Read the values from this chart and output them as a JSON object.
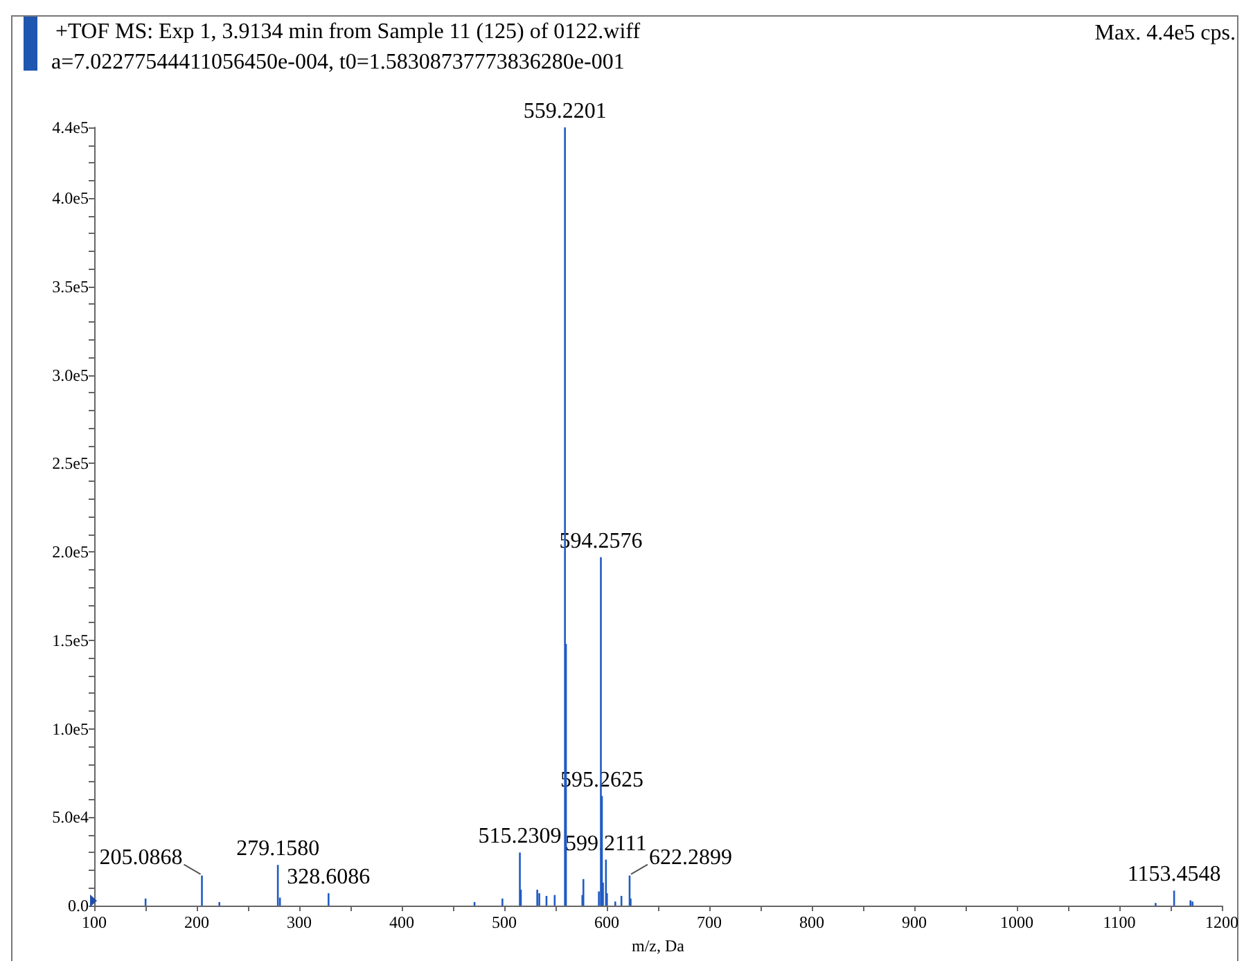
{
  "chart_data": {
    "type": "bar",
    "title": "+TOF MS: Exp 1, 3.9134 min from Sample 11 (125) of 0122.wiff",
    "subtitle": "a=7.02277544411056450e-004, t0=1.58308737773836280e-001",
    "xlabel": "m/z, Da",
    "x": [
      150.1,
      205.0868,
      222.1,
      279.158,
      281.2,
      328.6086,
      471.0,
      498.2,
      515.2309,
      516.2,
      532.2,
      534.2,
      541.2,
      549.2,
      559.2201,
      560.2,
      576.2,
      577.2,
      592.3,
      594.2576,
      595.2625,
      596.3,
      599.2111,
      600.2,
      608.3,
      614.3,
      622.2899,
      623.3,
      1135.4,
      1153.4548,
      1169.4,
      1171.4
    ],
    "values": [
      4000,
      17000,
      2000,
      23000,
      4500,
      7000,
      2000,
      4000,
      30000,
      9000,
      9000,
      7000,
      5500,
      6000,
      440000,
      148000,
      6000,
      15000,
      8000,
      197000,
      62000,
      13000,
      26000,
      7000,
      2300,
      5500,
      17000,
      4000,
      1500,
      8500,
      3000,
      2300
    ],
    "color": "#1f5bc4",
    "xlim": [
      100,
      1200
    ],
    "xticks": [
      100,
      {
        "value": 150,
        "label": null
      },
      200,
      {
        "value": 250,
        "label": null
      },
      300,
      {
        "value": 350,
        "label": null
      },
      400,
      {
        "value": 450,
        "label": null
      },
      500,
      {
        "value": 550,
        "label": null
      },
      600,
      {
        "value": 650,
        "label": null
      },
      700,
      {
        "value": 750,
        "label": null
      },
      800,
      {
        "value": 850,
        "label": null
      },
      900,
      {
        "value": 950,
        "label": null
      },
      1000,
      {
        "value": 1050,
        "label": null
      },
      1100,
      {
        "value": 1150,
        "label": null
      },
      1200
    ],
    "ylim": [
      0,
      440000
    ],
    "yticks": [
      {
        "value": 0,
        "label": "0.0"
      },
      {
        "value": 10000,
        "label": null
      },
      {
        "value": 20000,
        "label": null
      },
      {
        "value": 30000,
        "label": null
      },
      {
        "value": 40000,
        "label": null
      },
      {
        "value": 50000,
        "label": "5.0e4"
      },
      {
        "value": 60000,
        "label": null
      },
      {
        "value": 70000,
        "label": null
      },
      {
        "value": 80000,
        "label": null
      },
      {
        "value": 90000,
        "label": null
      },
      {
        "value": 100000,
        "label": "1.0e5"
      },
      {
        "value": 110000,
        "label": null
      },
      {
        "value": 120000,
        "label": null
      },
      {
        "value": 130000,
        "label": null
      },
      {
        "value": 140000,
        "label": null
      },
      {
        "value": 150000,
        "label": "1.5e5"
      },
      {
        "value": 160000,
        "label": null
      },
      {
        "value": 170000,
        "label": null
      },
      {
        "value": 180000,
        "label": null
      },
      {
        "value": 190000,
        "label": null
      },
      {
        "value": 200000,
        "label": "2.0e5"
      },
      {
        "value": 210000,
        "label": null
      },
      {
        "value": 220000,
        "label": null
      },
      {
        "value": 230000,
        "label": null
      },
      {
        "value": 240000,
        "label": null
      },
      {
        "value": 250000,
        "label": "2.5e5"
      },
      {
        "value": 260000,
        "label": null
      },
      {
        "value": 270000,
        "label": null
      },
      {
        "value": 280000,
        "label": null
      },
      {
        "value": 290000,
        "label": null
      },
      {
        "value": 300000,
        "label": "3.0e5"
      },
      {
        "value": 310000,
        "label": null
      },
      {
        "value": 320000,
        "label": null
      },
      {
        "value": 330000,
        "label": null
      },
      {
        "value": 340000,
        "label": null
      },
      {
        "value": 350000,
        "label": "3.5e5"
      },
      {
        "value": 360000,
        "label": null
      },
      {
        "value": 370000,
        "label": null
      },
      {
        "value": 380000,
        "label": null
      },
      {
        "value": 390000,
        "label": null
      },
      {
        "value": 400000,
        "label": "4.0e5"
      },
      {
        "value": 410000,
        "label": null
      },
      {
        "value": 420000,
        "label": null
      },
      {
        "value": 430000,
        "label": null
      },
      {
        "value": 440000,
        "label": "4.4e5"
      }
    ],
    "annotations": [
      "Max. 4.4e5 cps.",
      {
        "text": "559.2201",
        "x": 559.2201,
        "y": 440000
      },
      {
        "text": "594.2576",
        "x": 594.2576,
        "y": 197000
      },
      {
        "text": "595.2625",
        "x": 595.2625,
        "y": 62000
      },
      {
        "text": "515.2309",
        "x": 515.2309,
        "y": 30000
      },
      {
        "text": "599.2111",
        "x": 599.2111,
        "y": 26000
      },
      {
        "text": "279.1580",
        "x": 279.158,
        "y": 23000
      },
      {
        "text": "622.2899",
        "x": 622.2899,
        "y": 17000
      },
      {
        "text": "205.0868",
        "x": 205.0868,
        "y": 17000
      },
      {
        "text": "1153.4548",
        "x": 1153.4548,
        "y": 8500
      },
      {
        "text": "328.6086",
        "x": 328.6086,
        "y": 7000
      }
    ]
  }
}
